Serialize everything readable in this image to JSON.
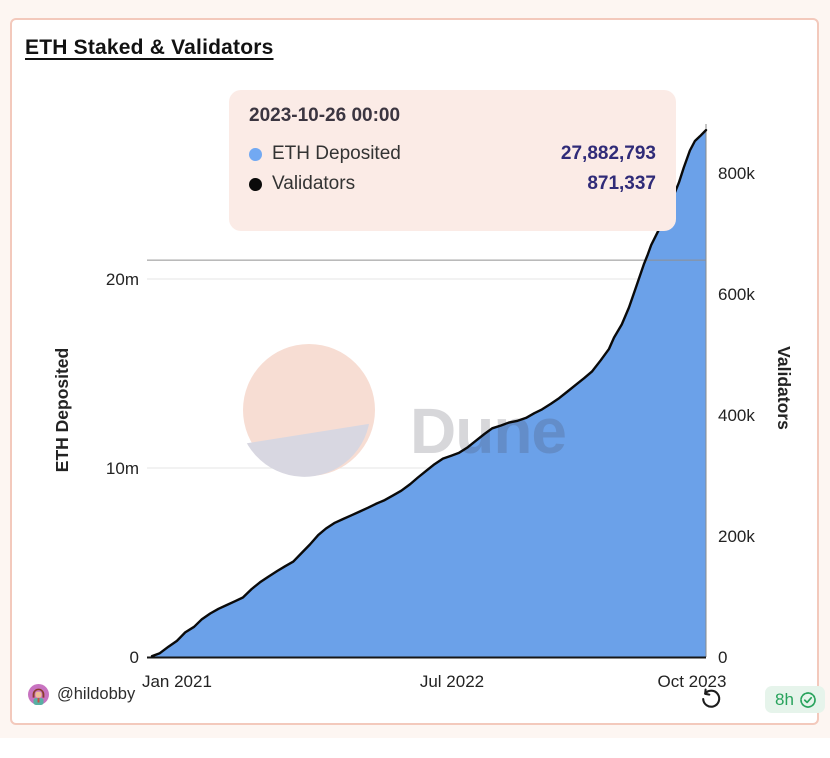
{
  "window": {
    "bg": "#fdf6f2",
    "card_bg": "#ffffff",
    "card_border": "#f3c9bc"
  },
  "header": {
    "title": "ETH Staked & Validators"
  },
  "tooltip": {
    "bg": "#fbebe6",
    "timestamp": "2023-10-26 00:00",
    "rows": [
      {
        "label": "ETH Deposited",
        "value": "27,882,793",
        "dot_color": "#72a9f2",
        "value_color": "#302b78"
      },
      {
        "label": "Validators",
        "value": "871,337",
        "dot_color": "#0a0a0a",
        "value_color": "#302b78"
      }
    ]
  },
  "watermark": {
    "text": "Dune",
    "circle_top_color": "#f7ddd3",
    "circle_bottom_color": "#d8d7e1",
    "text_color": "rgba(74,74,88,0.22)"
  },
  "footer": {
    "author": "@hildobby",
    "refresh_icon": "rotate-ccw-icon",
    "age_badge": {
      "text": "8h",
      "color": "#28a35c",
      "bg": "#e6f4eb",
      "icon": "verified-check-icon"
    }
  },
  "chart_data": {
    "type": "area",
    "title": "ETH Staked & Validators",
    "grid": "horizontal-only",
    "legend_position": "tooltip",
    "x_axis": {
      "tick_labels": [
        "Jan 2021",
        "Jul 2022",
        "Oct 2023"
      ],
      "tick_t": [
        0.045,
        0.5415,
        0.9747
      ],
      "range_note": "Nov 2020 to 2023-10-26"
    },
    "left_axis": {
      "title": "ETH Deposited",
      "unit": "millions of ETH",
      "ylim": [
        0,
        28.7
      ],
      "ticks": [
        {
          "label": "0",
          "v": 0
        },
        {
          "label": "10m",
          "v": 10
        },
        {
          "label": "20m",
          "v": 20
        }
      ]
    },
    "right_axis": {
      "title": "Validators",
      "ylim": [
        0,
        897000
      ],
      "validators_per_eth_m": 31250,
      "ticks": [
        {
          "label": "0",
          "validators": 0
        },
        {
          "label": "200k",
          "validators": 200000
        },
        {
          "label": "400k",
          "validators": 400000
        },
        {
          "label": "600k",
          "validators": 600000
        },
        {
          "label": "800k",
          "validators": 800000
        }
      ]
    },
    "extra_gridline_eth_m": 21,
    "series": [
      {
        "name": "ETH Deposited",
        "type": "area",
        "color": "#6ba1e9",
        "axis": "left",
        "final_value": 27882793
      },
      {
        "name": "Validators",
        "type": "line",
        "color": "#0a0a0a",
        "axis": "right",
        "final_value": 871337
      }
    ],
    "points_t_ethm": [
      [
        0.0,
        0.05
      ],
      [
        0.014,
        0.2
      ],
      [
        0.03,
        0.55
      ],
      [
        0.045,
        0.85
      ],
      [
        0.06,
        1.3
      ],
      [
        0.076,
        1.6
      ],
      [
        0.09,
        2.0
      ],
      [
        0.105,
        2.3
      ],
      [
        0.12,
        2.55
      ],
      [
        0.135,
        2.75
      ],
      [
        0.15,
        2.95
      ],
      [
        0.164,
        3.15
      ],
      [
        0.18,
        3.6
      ],
      [
        0.195,
        3.95
      ],
      [
        0.21,
        4.25
      ],
      [
        0.226,
        4.55
      ],
      [
        0.24,
        4.8
      ],
      [
        0.255,
        5.05
      ],
      [
        0.27,
        5.5
      ],
      [
        0.285,
        5.95
      ],
      [
        0.3,
        6.45
      ],
      [
        0.314,
        6.8
      ],
      [
        0.33,
        7.1
      ],
      [
        0.345,
        7.3
      ],
      [
        0.36,
        7.5
      ],
      [
        0.375,
        7.7
      ],
      [
        0.39,
        7.9
      ],
      [
        0.404,
        8.1
      ],
      [
        0.42,
        8.3
      ],
      [
        0.435,
        8.55
      ],
      [
        0.45,
        8.8
      ],
      [
        0.466,
        9.15
      ],
      [
        0.48,
        9.5
      ],
      [
        0.495,
        9.85
      ],
      [
        0.51,
        10.2
      ],
      [
        0.525,
        10.5
      ],
      [
        0.54,
        10.65
      ],
      [
        0.554,
        10.8
      ],
      [
        0.57,
        11.1
      ],
      [
        0.585,
        11.45
      ],
      [
        0.6,
        11.8
      ],
      [
        0.614,
        12.1
      ],
      [
        0.63,
        12.25
      ],
      [
        0.644,
        12.4
      ],
      [
        0.66,
        12.5
      ],
      [
        0.675,
        12.65
      ],
      [
        0.69,
        12.9
      ],
      [
        0.704,
        13.1
      ],
      [
        0.72,
        13.4
      ],
      [
        0.735,
        13.7
      ],
      [
        0.75,
        14.05
      ],
      [
        0.765,
        14.4
      ],
      [
        0.78,
        14.75
      ],
      [
        0.794,
        15.1
      ],
      [
        0.81,
        15.7
      ],
      [
        0.825,
        16.3
      ],
      [
        0.834,
        16.9
      ],
      [
        0.848,
        17.6
      ],
      [
        0.861,
        18.5
      ],
      [
        0.874,
        19.6
      ],
      [
        0.888,
        20.8
      ],
      [
        0.895,
        21.3
      ],
      [
        0.901,
        21.8
      ],
      [
        0.913,
        22.5
      ],
      [
        0.92,
        22.9
      ],
      [
        0.928,
        23.3
      ],
      [
        0.934,
        23.8
      ],
      [
        0.94,
        24.3
      ],
      [
        0.951,
        25.1
      ],
      [
        0.96,
        25.9
      ],
      [
        0.971,
        26.8
      ],
      [
        0.98,
        27.3
      ],
      [
        0.989,
        27.55
      ],
      [
        1.0,
        27.88
      ]
    ]
  }
}
